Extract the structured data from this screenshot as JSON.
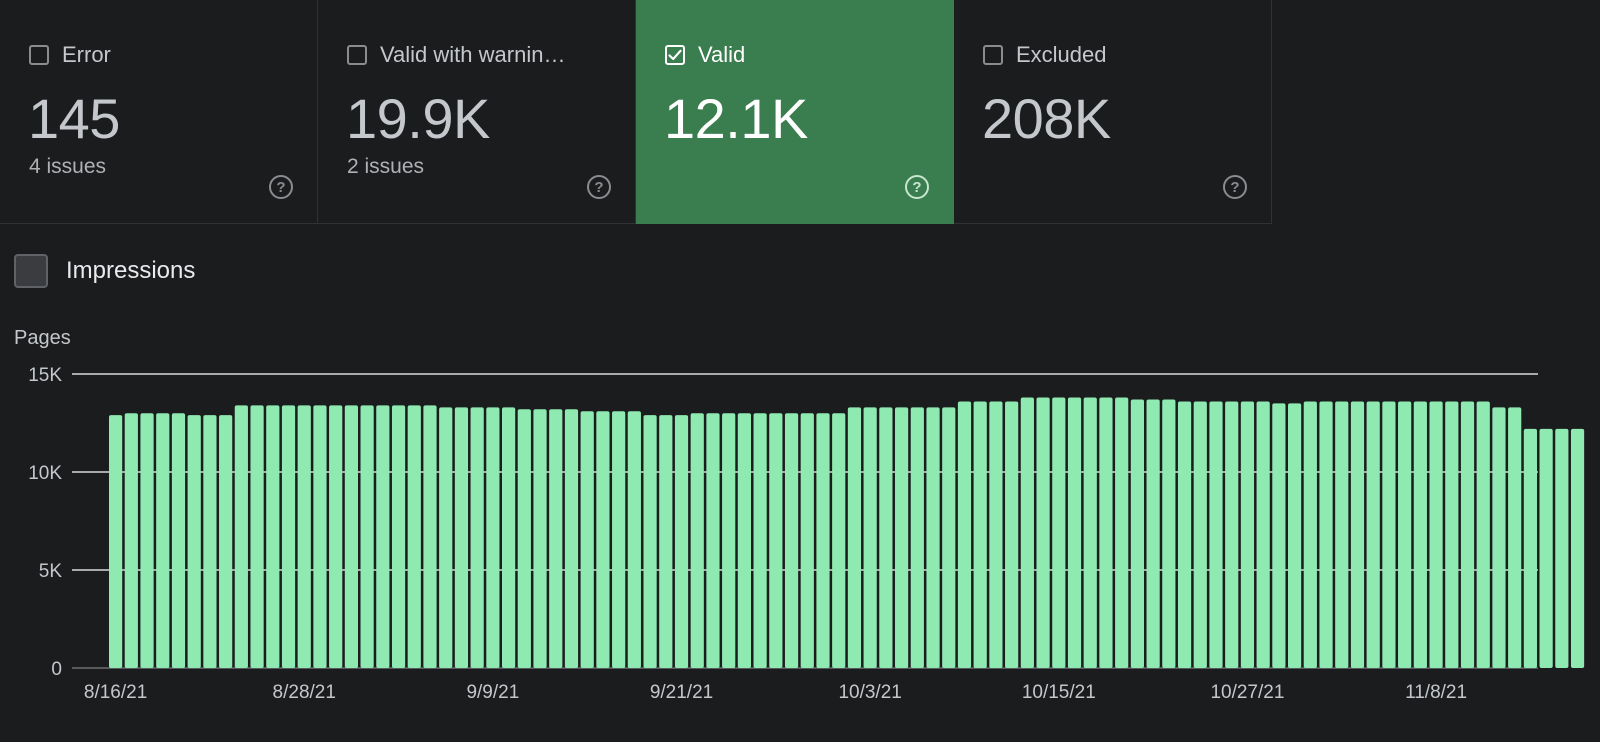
{
  "cards": [
    {
      "label": "Error",
      "value": "145",
      "sub": "4 issues",
      "checked": false
    },
    {
      "label": "Valid with warnin…",
      "value": "19.9K",
      "sub": "2 issues",
      "checked": false
    },
    {
      "label": "Valid",
      "value": "12.1K",
      "sub": "",
      "checked": true
    },
    {
      "label": "Excluded",
      "value": "208K",
      "sub": "",
      "checked": false
    }
  ],
  "help_glyph": "?",
  "impressions_label": "Impressions",
  "colors": {
    "background": "#1b1c1e",
    "active_card": "#3a7d4f",
    "bar": "#8eeab0",
    "gridline": "#ffffff"
  },
  "chart_data": {
    "type": "bar",
    "ylabel": "Pages",
    "ylim": [
      0,
      15000
    ],
    "yticks": [
      {
        "value": 0,
        "label": "0"
      },
      {
        "value": 5000,
        "label": "5K"
      },
      {
        "value": 10000,
        "label": "10K"
      },
      {
        "value": 15000,
        "label": "15K"
      }
    ],
    "grid": true,
    "x_tick_labels": [
      {
        "index": 0,
        "label": "8/16/21"
      },
      {
        "index": 12,
        "label": "8/28/21"
      },
      {
        "index": 24,
        "label": "9/9/21"
      },
      {
        "index": 36,
        "label": "9/21/21"
      },
      {
        "index": 48,
        "label": "10/3/21"
      },
      {
        "index": 60,
        "label": "10/15/21"
      },
      {
        "index": 72,
        "label": "10/27/21"
      },
      {
        "index": 84,
        "label": "11/8/21"
      }
    ],
    "series": [
      {
        "values": [
          12900,
          13000,
          13000,
          13000,
          13000,
          12900,
          12900,
          12900,
          13400,
          13400,
          13400,
          13400,
          13400,
          13400,
          13400,
          13400,
          13400,
          13400,
          13400,
          13400,
          13400,
          13300,
          13300,
          13300,
          13300,
          13300,
          13200,
          13200,
          13200,
          13200,
          13100,
          13100,
          13100,
          13100,
          12900,
          12900,
          12900,
          13000,
          13000,
          13000,
          13000,
          13000,
          13000,
          13000,
          13000,
          13000,
          13000,
          13300,
          13300,
          13300,
          13300,
          13300,
          13300,
          13300,
          13600,
          13600,
          13600,
          13600,
          13800,
          13800,
          13800,
          13800,
          13800,
          13800,
          13800,
          13700,
          13700,
          13700,
          13600,
          13600,
          13600,
          13600,
          13600,
          13600,
          13500,
          13500,
          13600,
          13600,
          13600,
          13600,
          13600,
          13600,
          13600,
          13600,
          13600,
          13600,
          13600,
          13600,
          13300,
          13300,
          12200,
          12200,
          12200,
          12200
        ]
      }
    ]
  }
}
